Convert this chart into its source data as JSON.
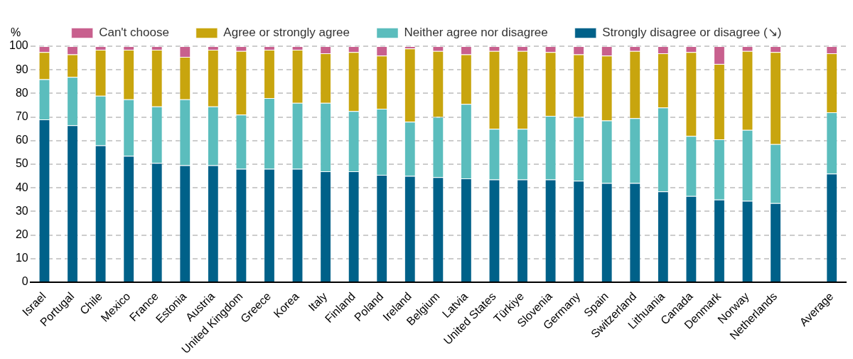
{
  "chart_data": {
    "type": "bar",
    "stacked": true,
    "ylabel": "%",
    "categories": [
      "Israel",
      "Portugal",
      "Chile",
      "Mexico",
      "France",
      "Estonia",
      "Austria",
      "United Kingdom",
      "Greece",
      "Korea",
      "Italy",
      "Finland",
      "Poland",
      "Ireland",
      "Belgium",
      "Latvia",
      "United States",
      "Türkiye",
      "Slovenia",
      "Germany",
      "Spain",
      "Switzerland",
      "Lithuania",
      "Canada",
      "Denmark",
      "Norway",
      "Netherlands",
      null,
      "Average"
    ],
    "series": [
      {
        "name": "Strongly disagree or disagree (↘)",
        "color": "#006189",
        "values": [
          69,
          66.5,
          58,
          53.5,
          50.5,
          49.5,
          49.5,
          48,
          48,
          48,
          47,
          47,
          45.5,
          45,
          44.5,
          44,
          43.5,
          43.5,
          43.5,
          43,
          42,
          42,
          38.5,
          36.5,
          35,
          34.5,
          33.5,
          null,
          46
        ]
      },
      {
        "name": "Neither agree nor disagree",
        "color": "#5bbdbd",
        "values": [
          17,
          20.5,
          21,
          24,
          24,
          28,
          25,
          23,
          30,
          28,
          29,
          25.5,
          28,
          23,
          25.5,
          31.5,
          21.5,
          21.5,
          27,
          27,
          26.5,
          27.5,
          35.5,
          25.5,
          25.5,
          30,
          25,
          null,
          26
        ]
      },
      {
        "name": "Agree or strongly agree",
        "color": "#c8a50e",
        "values": [
          11.5,
          9.5,
          19.5,
          21,
          24,
          18,
          24,
          27,
          20.5,
          22.5,
          21,
          25,
          22.5,
          31,
          28,
          21,
          33,
          33,
          27,
          26.5,
          27.5,
          28.5,
          23,
          35.5,
          32,
          33.5,
          39,
          null,
          25
        ]
      },
      {
        "name": "Can't choose",
        "color": "#c8608e",
        "values": [
          2.5,
          3.5,
          1.5,
          1.5,
          1.5,
          4.5,
          1.5,
          2,
          1.5,
          1.5,
          3,
          2.5,
          4,
          1,
          2,
          3.5,
          2,
          2,
          2.5,
          3.5,
          4,
          2,
          3,
          2.5,
          7.5,
          2,
          2.5,
          null,
          3
        ]
      }
    ],
    "ylim": [
      0,
      100
    ],
    "yticks": [
      0,
      10,
      20,
      30,
      40,
      50,
      60,
      70,
      80,
      90,
      100
    ],
    "grid": "y",
    "legend": "top"
  }
}
